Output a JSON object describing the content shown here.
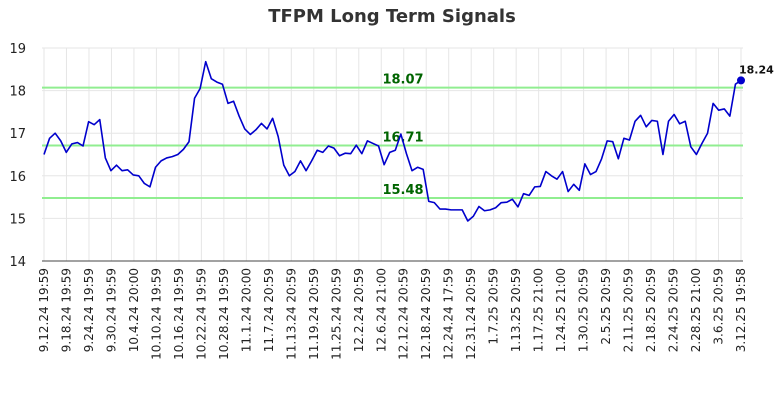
{
  "chart_data": {
    "type": "line",
    "title": "TFPM Long Term Signals",
    "xlabel": "",
    "ylabel": "",
    "ylim": [
      14,
      19
    ],
    "yticks": [
      14,
      15,
      16,
      17,
      18,
      19
    ],
    "grid": true,
    "legend": "none",
    "x_tick_labels": [
      "9.12.24 19:59",
      "9.18.24 19:59",
      "9.24.24 19:59",
      "9.30.24 19:59",
      "10.4.24 20:00",
      "10.10.24 19:59",
      "10.16.24 19:59",
      "10.22.24 19:59",
      "10.28.24 19:59",
      "11.1.24 20:00",
      "11.7.24 20:59",
      "11.13.24 20:59",
      "11.19.24 20:59",
      "11.25.24 20:59",
      "12.2.24 20:59",
      "12.6.24 21:00",
      "12.12.24 20:59",
      "12.18.24 20:59",
      "12.24.24 17:59",
      "12.31.24 20:59",
      "1.7.25 20:59",
      "1.13.25 20:59",
      "1.17.25 21:00",
      "1.24.25 21:00",
      "1.30.25 20:59",
      "2.5.25 20:59",
      "2.11.25 20:59",
      "2.18.25 20:59",
      "2.24.25 20:59",
      "2.28.25 21:00",
      "3.6.25 20:59",
      "3.12.25 19:58"
    ],
    "series": [
      {
        "color": "#0000cc",
        "values": [
          16.5,
          16.88,
          17.0,
          16.82,
          16.55,
          16.75,
          16.78,
          16.7,
          17.27,
          17.2,
          17.32,
          16.42,
          16.12,
          16.25,
          16.12,
          16.14,
          16.02,
          16.0,
          15.82,
          15.74,
          16.2,
          16.35,
          16.42,
          16.45,
          16.5,
          16.62,
          16.8,
          17.82,
          18.05,
          18.68,
          18.28,
          18.2,
          18.15,
          17.7,
          17.75,
          17.4,
          17.1,
          16.97,
          17.08,
          17.23,
          17.1,
          17.35,
          16.92,
          16.25,
          16.0,
          16.1,
          16.35,
          16.12,
          16.35,
          16.6,
          16.55,
          16.7,
          16.65,
          16.47,
          16.53,
          16.52,
          16.72,
          16.52,
          16.82,
          16.76,
          16.7,
          16.26,
          16.55,
          16.6,
          16.98,
          16.52,
          16.12,
          16.2,
          16.15,
          15.4,
          15.37,
          15.22,
          15.22,
          15.2,
          15.2,
          15.2,
          14.94,
          15.05,
          15.28,
          15.18,
          15.2,
          15.25,
          15.37,
          15.38,
          15.45,
          15.27,
          15.58,
          15.54,
          15.74,
          15.75,
          16.1,
          16.0,
          15.92,
          16.1,
          15.63,
          15.8,
          15.66,
          16.28,
          16.03,
          16.1,
          16.4,
          16.82,
          16.8,
          16.4,
          16.88,
          16.84,
          17.28,
          17.42,
          17.15,
          17.3,
          17.28,
          16.5,
          17.28,
          17.44,
          17.22,
          17.28,
          16.68,
          16.5,
          16.76,
          17.0,
          17.7,
          17.54,
          17.57,
          17.4,
          18.15,
          18.24
        ]
      }
    ],
    "reference_lines": [
      {
        "label": "18.07",
        "value": 18.07,
        "color": "#90ee90",
        "label_color": "#006400"
      },
      {
        "label": "16.71",
        "value": 16.71,
        "color": "#90ee90",
        "label_color": "#006400"
      },
      {
        "label": "15.48",
        "value": 15.48,
        "color": "#90ee90",
        "label_color": "#006400"
      }
    ],
    "last_point_label": "18.24"
  }
}
